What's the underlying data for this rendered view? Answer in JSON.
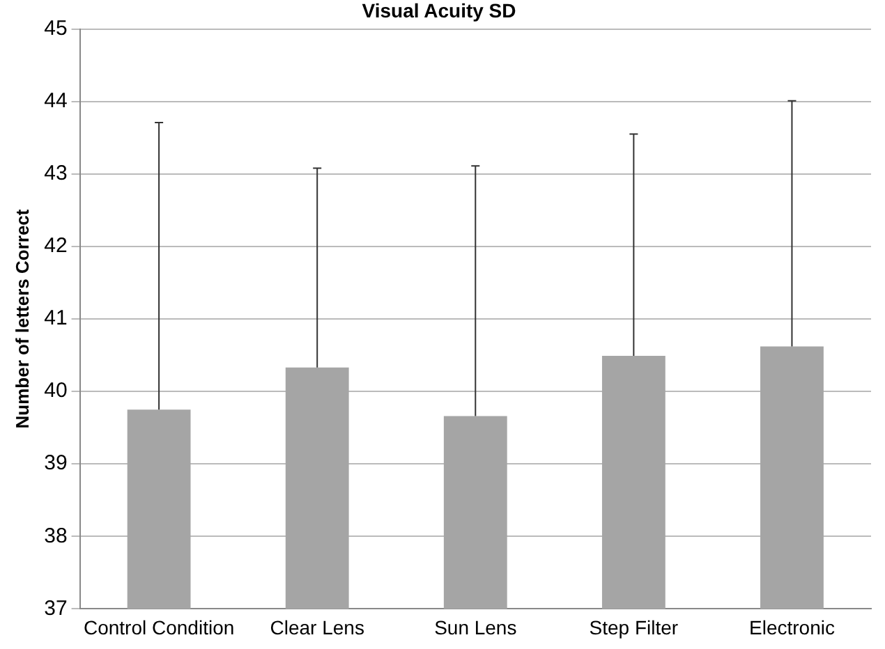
{
  "chart_data": {
    "type": "bar",
    "title": "Visual Acuity SD",
    "ylabel": "Number of letters Correct",
    "categories": [
      "Control Condition",
      "Clear Lens",
      "Sun Lens",
      "Step Filter",
      "Electronic"
    ],
    "values": [
      39.75,
      40.33,
      39.66,
      40.49,
      40.62
    ],
    "errors": [
      [
        39.75,
        43.71
      ],
      [
        40.33,
        43.08
      ],
      [
        39.66,
        43.11
      ],
      [
        40.49,
        43.55
      ],
      [
        40.62,
        44.01
      ]
    ],
    "color": "#a5a5a5",
    "ylim": [
      37,
      45
    ],
    "yticks": [
      37,
      38,
      39,
      40,
      41,
      42,
      43,
      44,
      45
    ],
    "grid": "y",
    "legend": false
  }
}
